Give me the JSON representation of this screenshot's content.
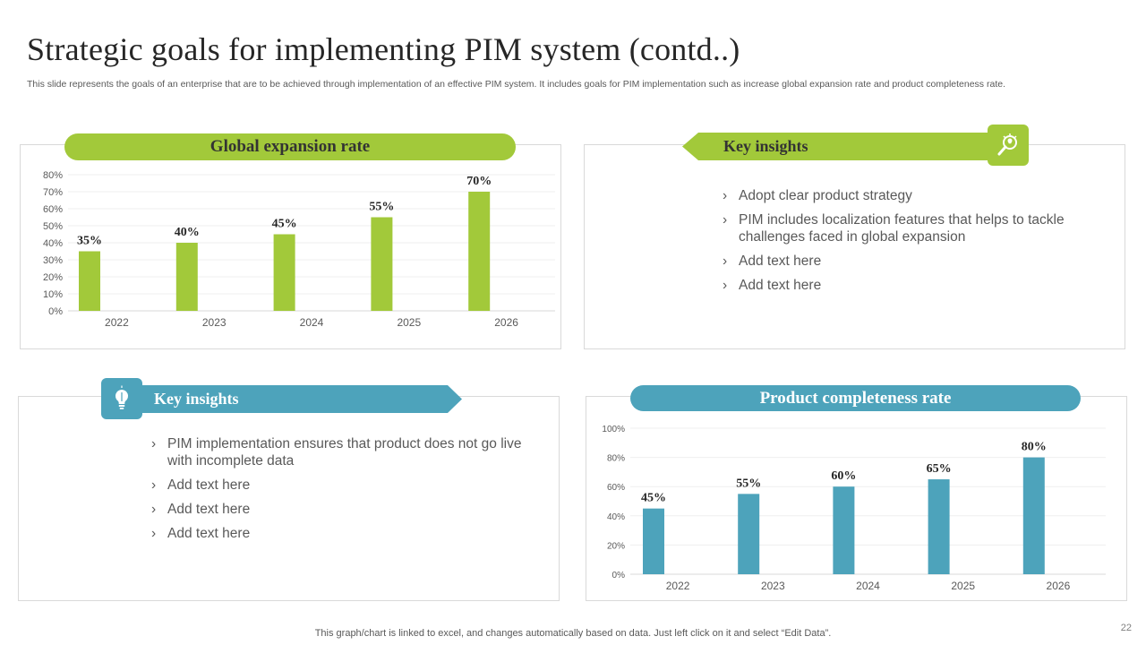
{
  "slide": {
    "title": "Strategic goals for implementing PIM system (contd..)",
    "subtitle": "This slide represents the goals of an enterprise that are to be achieved through implementation of an effective PIM system. It includes goals for PIM implementation such as increase global expansion rate and product completeness rate.",
    "footer": "This graph/chart is linked to excel,  and changes automatically based on data. Just left click on it and select “Edit Data”.",
    "page_number": "22"
  },
  "panel_top_left": {
    "heading": "Global expansion rate"
  },
  "panel_top_right": {
    "heading": "Key insights",
    "icon": "magnifier-bulb-icon",
    "bullets": [
      "Adopt clear product strategy",
      "PIM includes localization features that helps to tackle challenges faced in global expansion",
      "Add text here",
      "Add text here"
    ]
  },
  "panel_bottom_left": {
    "heading": "Key insights",
    "icon": "lightbulb-icon",
    "bullets": [
      "PIM implementation ensures that product does not go live with incomplete data",
      "Add text here",
      "Add text here",
      "Add text here"
    ]
  },
  "panel_bottom_right": {
    "heading": "Product completeness rate"
  },
  "bullet_glyph": "›",
  "colors": {
    "green": "#a2c93a",
    "blue": "#4da3bb"
  },
  "chart_data": [
    {
      "type": "bar",
      "title": "Global expansion rate",
      "categories": [
        "2022",
        "2023",
        "2024",
        "2025",
        "2026"
      ],
      "values": [
        35,
        40,
        45,
        55,
        70
      ],
      "data_labels": [
        "35%",
        "40%",
        "45%",
        "55%",
        "70%"
      ],
      "ylim": [
        0,
        80
      ],
      "yticks": [
        "0%",
        "10%",
        "20%",
        "30%",
        "40%",
        "50%",
        "60%",
        "70%",
        "80%"
      ],
      "color": "#a2c93a",
      "grid": true
    },
    {
      "type": "bar",
      "title": "Product completeness rate",
      "categories": [
        "2022",
        "2023",
        "2024",
        "2025",
        "2026"
      ],
      "values": [
        45,
        55,
        60,
        65,
        80
      ],
      "data_labels": [
        "45%",
        "55%",
        "60%",
        "65%",
        "80%"
      ],
      "ylim": [
        0,
        100
      ],
      "yticks": [
        "0%",
        "20%",
        "40%",
        "60%",
        "80%",
        "100%"
      ],
      "color": "#4da3bb",
      "grid": true
    }
  ]
}
